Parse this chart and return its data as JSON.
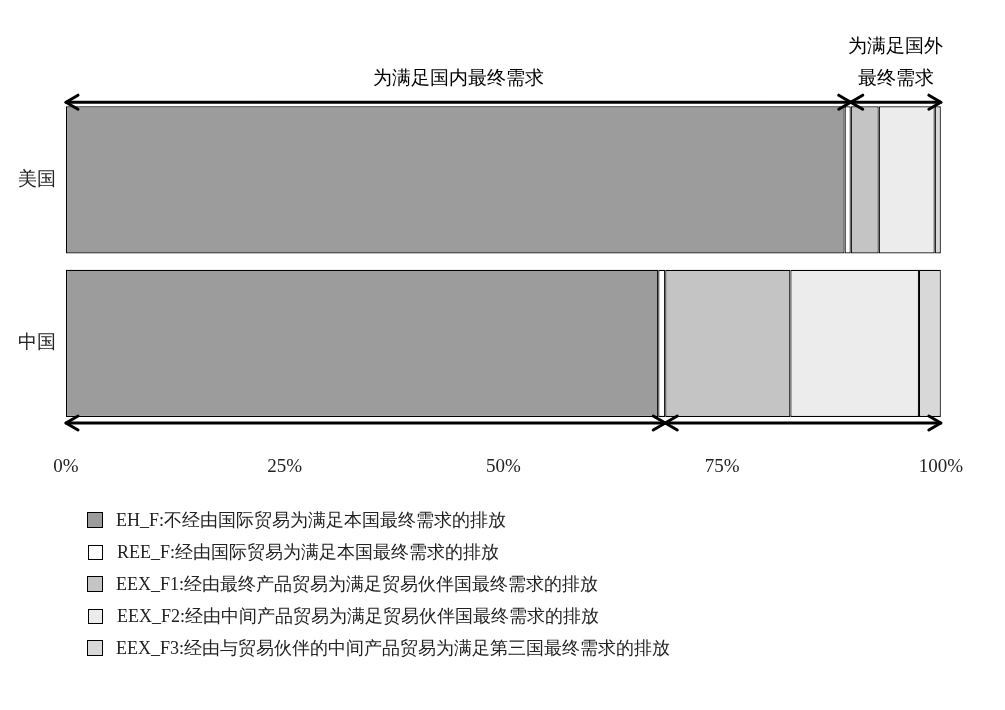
{
  "chart_data": {
    "type": "bar",
    "orientation": "horizontal",
    "stacked": true,
    "categories": [
      "美国",
      "中国"
    ],
    "series": [
      {
        "name": "EH_F:不经由国际贸易为满足本国最终需求的排放",
        "color": "#9c9c9c",
        "values": [
          89.0,
          67.7
        ]
      },
      {
        "name": "REE_F:经由国际贸易为满足本国最终需求的排放",
        "color": "#ffffff",
        "values": [
          0.7,
          0.8
        ]
      },
      {
        "name": "EEX_F1:经由最终产品贸易为满足贸易伙伴国最终需求的排放",
        "color": "#c4c4c4",
        "values": [
          3.2,
          14.3
        ]
      },
      {
        "name": "EEX_F2:经由中间产品贸易为满足贸易伙伴国最终需求的排放",
        "color": "#ececec",
        "values": [
          6.4,
          14.7
        ]
      },
      {
        "name": "EEX_F3:经由与贸易伙伴的中间产品贸易为满足第三国最终需求的排放",
        "color": "#d8d8d8",
        "values": [
          0.7,
          2.5
        ]
      }
    ],
    "xlim": [
      0,
      100
    ],
    "xticks": [
      {
        "value": 0,
        "label": "0%"
      },
      {
        "value": 25,
        "label": "25%"
      },
      {
        "value": 50,
        "label": "50%"
      },
      {
        "value": 75,
        "label": "75%"
      },
      {
        "value": 100,
        "label": "100%"
      }
    ],
    "grid": false,
    "legend": "bottom",
    "annotations": [
      "为满足国内最终需求",
      "为满足国外最终需求"
    ]
  }
}
